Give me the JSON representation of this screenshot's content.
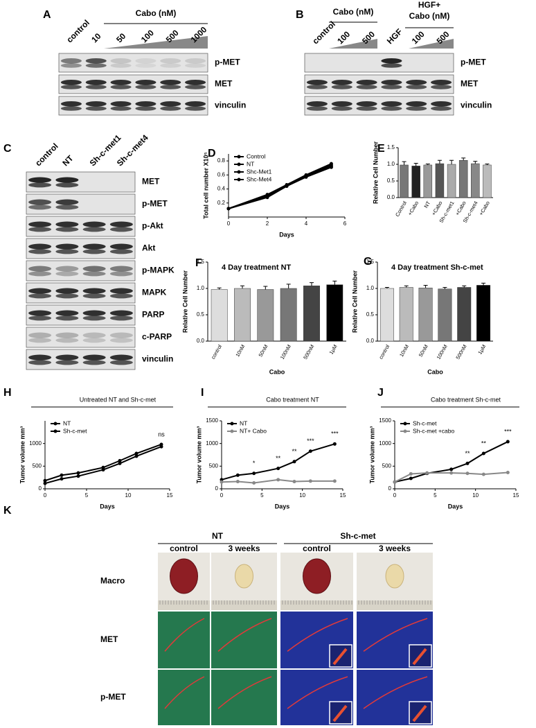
{
  "panel_letters": [
    "A",
    "B",
    "C",
    "D",
    "E",
    "F",
    "G",
    "H",
    "I",
    "J",
    "K"
  ],
  "blot_a": {
    "header": "Cabo (nM)",
    "lanes": [
      "control",
      "10",
      "50",
      "100",
      "500",
      "1000"
    ],
    "rows": [
      "p-MET",
      "MET",
      "vinculin"
    ]
  },
  "blot_b": {
    "headers": [
      "Cabo (nM)",
      "HGF+",
      "Cabo (nM)"
    ],
    "lanes": [
      "control",
      "100",
      "500",
      "HGF",
      "100",
      "500"
    ],
    "rows": [
      "p-MET",
      "MET",
      "vinculin"
    ]
  },
  "blot_c": {
    "lanes": [
      "control",
      "NT",
      "Sh-c-met1",
      "Sh-c-met4"
    ],
    "rows": [
      "MET",
      "p-MET",
      "p-Akt",
      "Akt",
      "p-MAPK",
      "MAPK",
      "PARP",
      "c-PARP",
      "vinculin"
    ]
  },
  "chart_data": [
    {
      "type": "line",
      "ylabel": "Total cell number X10⁵",
      "xlabel": "Days",
      "x": [
        0,
        2,
        3,
        4,
        5.3
      ],
      "series": [
        {
          "name": "Control",
          "color": "#000000",
          "values": [
            0.12,
            0.32,
            0.46,
            0.6,
            0.76
          ]
        },
        {
          "name": "NT",
          "color": "#000000",
          "values": [
            0.12,
            0.3,
            0.45,
            0.59,
            0.74
          ]
        },
        {
          "name": "Shc-Met1",
          "color": "#000000",
          "values": [
            0.12,
            0.29,
            0.44,
            0.58,
            0.72
          ]
        },
        {
          "name": "Shc-Met4",
          "color": "#000000",
          "values": [
            0.12,
            0.28,
            0.44,
            0.57,
            0.71
          ]
        }
      ],
      "xlim": [
        0,
        6
      ],
      "xticks": [
        0,
        2,
        4,
        6
      ],
      "ylim": [
        0,
        0.9
      ],
      "yticks": [
        0.2,
        0.4,
        0.6,
        0.8
      ],
      "legend": "upper left"
    },
    {
      "type": "bar",
      "ylabel": "Relative Cell Number",
      "categories": [
        "Control",
        "+Cabo",
        "NT",
        "+Cabo",
        "Sh-c-met1",
        "+Cabo",
        "Sh-c-met4",
        "+Cabo"
      ],
      "values": [
        0.98,
        0.95,
        0.98,
        1.02,
        1.0,
        1.12,
        1.02,
        0.98
      ],
      "errors": [
        0.1,
        0.08,
        0.03,
        0.1,
        0.12,
        0.07,
        0.07,
        0.03
      ],
      "colors": [
        "#777777",
        "#222222",
        "#999999",
        "#555555",
        "#aaaaaa",
        "#777777",
        "#888888",
        "#bbbbbb"
      ],
      "ylim": [
        0,
        1.5
      ],
      "yticks": [
        {
          "value": 0,
          "label": "0.0"
        },
        0.5,
        {
          "value": 1,
          "label": "1.0"
        },
        1.5
      ]
    },
    {
      "type": "bar",
      "title": "4 Day treatment NT",
      "ylabel": "Relative Cell Number",
      "xlabel": "Cabo",
      "categories": [
        "control",
        "10nM",
        "50nM",
        "100nM",
        "500nM",
        "1μM"
      ],
      "values": [
        0.98,
        1.0,
        0.98,
        1.0,
        1.05,
        1.07
      ],
      "errors": [
        0.03,
        0.05,
        0.06,
        0.08,
        0.06,
        0.07
      ],
      "colors": [
        "#dddddd",
        "#bbbbbb",
        "#999999",
        "#777777",
        "#444444",
        "#000000"
      ],
      "ylim": [
        0,
        1.5
      ],
      "yticks": [
        {
          "value": 0,
          "label": "0.0"
        },
        0.5,
        {
          "value": 1,
          "label": "1.0"
        },
        1.5
      ]
    },
    {
      "type": "bar",
      "title": "4 Day treatment Sh-c-met",
      "ylabel": "Relative Cell Number",
      "xlabel": "Cabo",
      "categories": [
        "control",
        "10nM",
        "50nM",
        "100nM",
        "500nM",
        "1μM"
      ],
      "values": [
        1.0,
        1.02,
        1.01,
        0.99,
        1.02,
        1.06
      ],
      "errors": [
        0.02,
        0.03,
        0.05,
        0.03,
        0.03,
        0.04
      ],
      "colors": [
        "#dddddd",
        "#bbbbbb",
        "#999999",
        "#777777",
        "#444444",
        "#000000"
      ],
      "ylim": [
        0,
        1.5
      ],
      "yticks": [
        {
          "value": 0,
          "label": "0.0"
        },
        0.5,
        {
          "value": 1,
          "label": "1.0"
        },
        1.5
      ]
    },
    {
      "type": "line",
      "title": "Untreated NT and Sh-c-met",
      "ylabel": "Tumor volume mm³",
      "xlabel": "Days",
      "x": [
        0,
        2,
        4,
        7,
        9,
        11,
        14
      ],
      "series": [
        {
          "name": "NT",
          "color": "#000000",
          "values": [
            180,
            300,
            350,
            470,
            620,
            780,
            980
          ]
        },
        {
          "name": "Sh-c-met",
          "color": "#000000",
          "values": [
            120,
            220,
            280,
            420,
            560,
            720,
            930
          ]
        }
      ],
      "xlim": [
        0,
        15
      ],
      "xticks": [
        0,
        5,
        10,
        15
      ],
      "ylim": [
        0,
        1500
      ],
      "yticks": [
        0,
        500,
        1000
      ],
      "legend": "upper left",
      "annotations": [
        {
          "text": "ns",
          "x": 14
        }
      ]
    },
    {
      "type": "line",
      "title": "Cabo treatment NT",
      "ylabel": "Tumor volume mm³",
      "xlabel": "Days",
      "x": [
        0,
        2,
        4,
        7,
        9,
        11,
        14
      ],
      "series": [
        {
          "name": "NT",
          "color": "#000000",
          "values": [
            200,
            300,
            340,
            450,
            600,
            830,
            990
          ]
        },
        {
          "name": "NT+ Cabo",
          "color": "#888888",
          "values": [
            150,
            160,
            130,
            200,
            160,
            170,
            170
          ]
        }
      ],
      "xlim": [
        0,
        15
      ],
      "xticks": [
        0,
        5,
        10,
        15
      ],
      "ylim": [
        0,
        1500
      ],
      "yticks": [
        0,
        500,
        1000,
        1500
      ],
      "legend": "upper left",
      "annotations": [
        {
          "text": "*",
          "x": 4
        },
        {
          "text": "**",
          "x": 7
        },
        {
          "text": "**",
          "x": 9
        },
        {
          "text": "***",
          "x": 11
        },
        {
          "text": "***",
          "x": 14
        }
      ]
    },
    {
      "type": "line",
      "title": "Cabo treatment Sh-c-met",
      "ylabel": "Tumor volume mm³",
      "xlabel": "Days",
      "x": [
        0,
        2,
        4,
        7,
        9,
        11,
        14
      ],
      "series": [
        {
          "name": "Sh-c-met",
          "color": "#000000",
          "values": [
            150,
            230,
            340,
            430,
            560,
            780,
            1040
          ]
        },
        {
          "name": "Sh-c-met +cabo",
          "color": "#888888",
          "values": [
            150,
            330,
            350,
            350,
            340,
            320,
            360
          ]
        }
      ],
      "xlim": [
        0,
        15
      ],
      "xticks": [
        0,
        5,
        10,
        15
      ],
      "ylim": [
        0,
        1500
      ],
      "yticks": [
        0,
        500,
        1000,
        1500
      ],
      "legend": "upper left",
      "annotations": [
        {
          "text": "**",
          "x": 9
        },
        {
          "text": "**",
          "x": 11
        },
        {
          "text": "***",
          "x": 14
        }
      ]
    }
  ],
  "tissue": {
    "groups": [
      "NT",
      "Sh-c-met"
    ],
    "columns": [
      "control",
      "3 weeks",
      "control",
      "3 weeks"
    ],
    "rows": [
      "Macro",
      "MET",
      "p-MET"
    ]
  }
}
